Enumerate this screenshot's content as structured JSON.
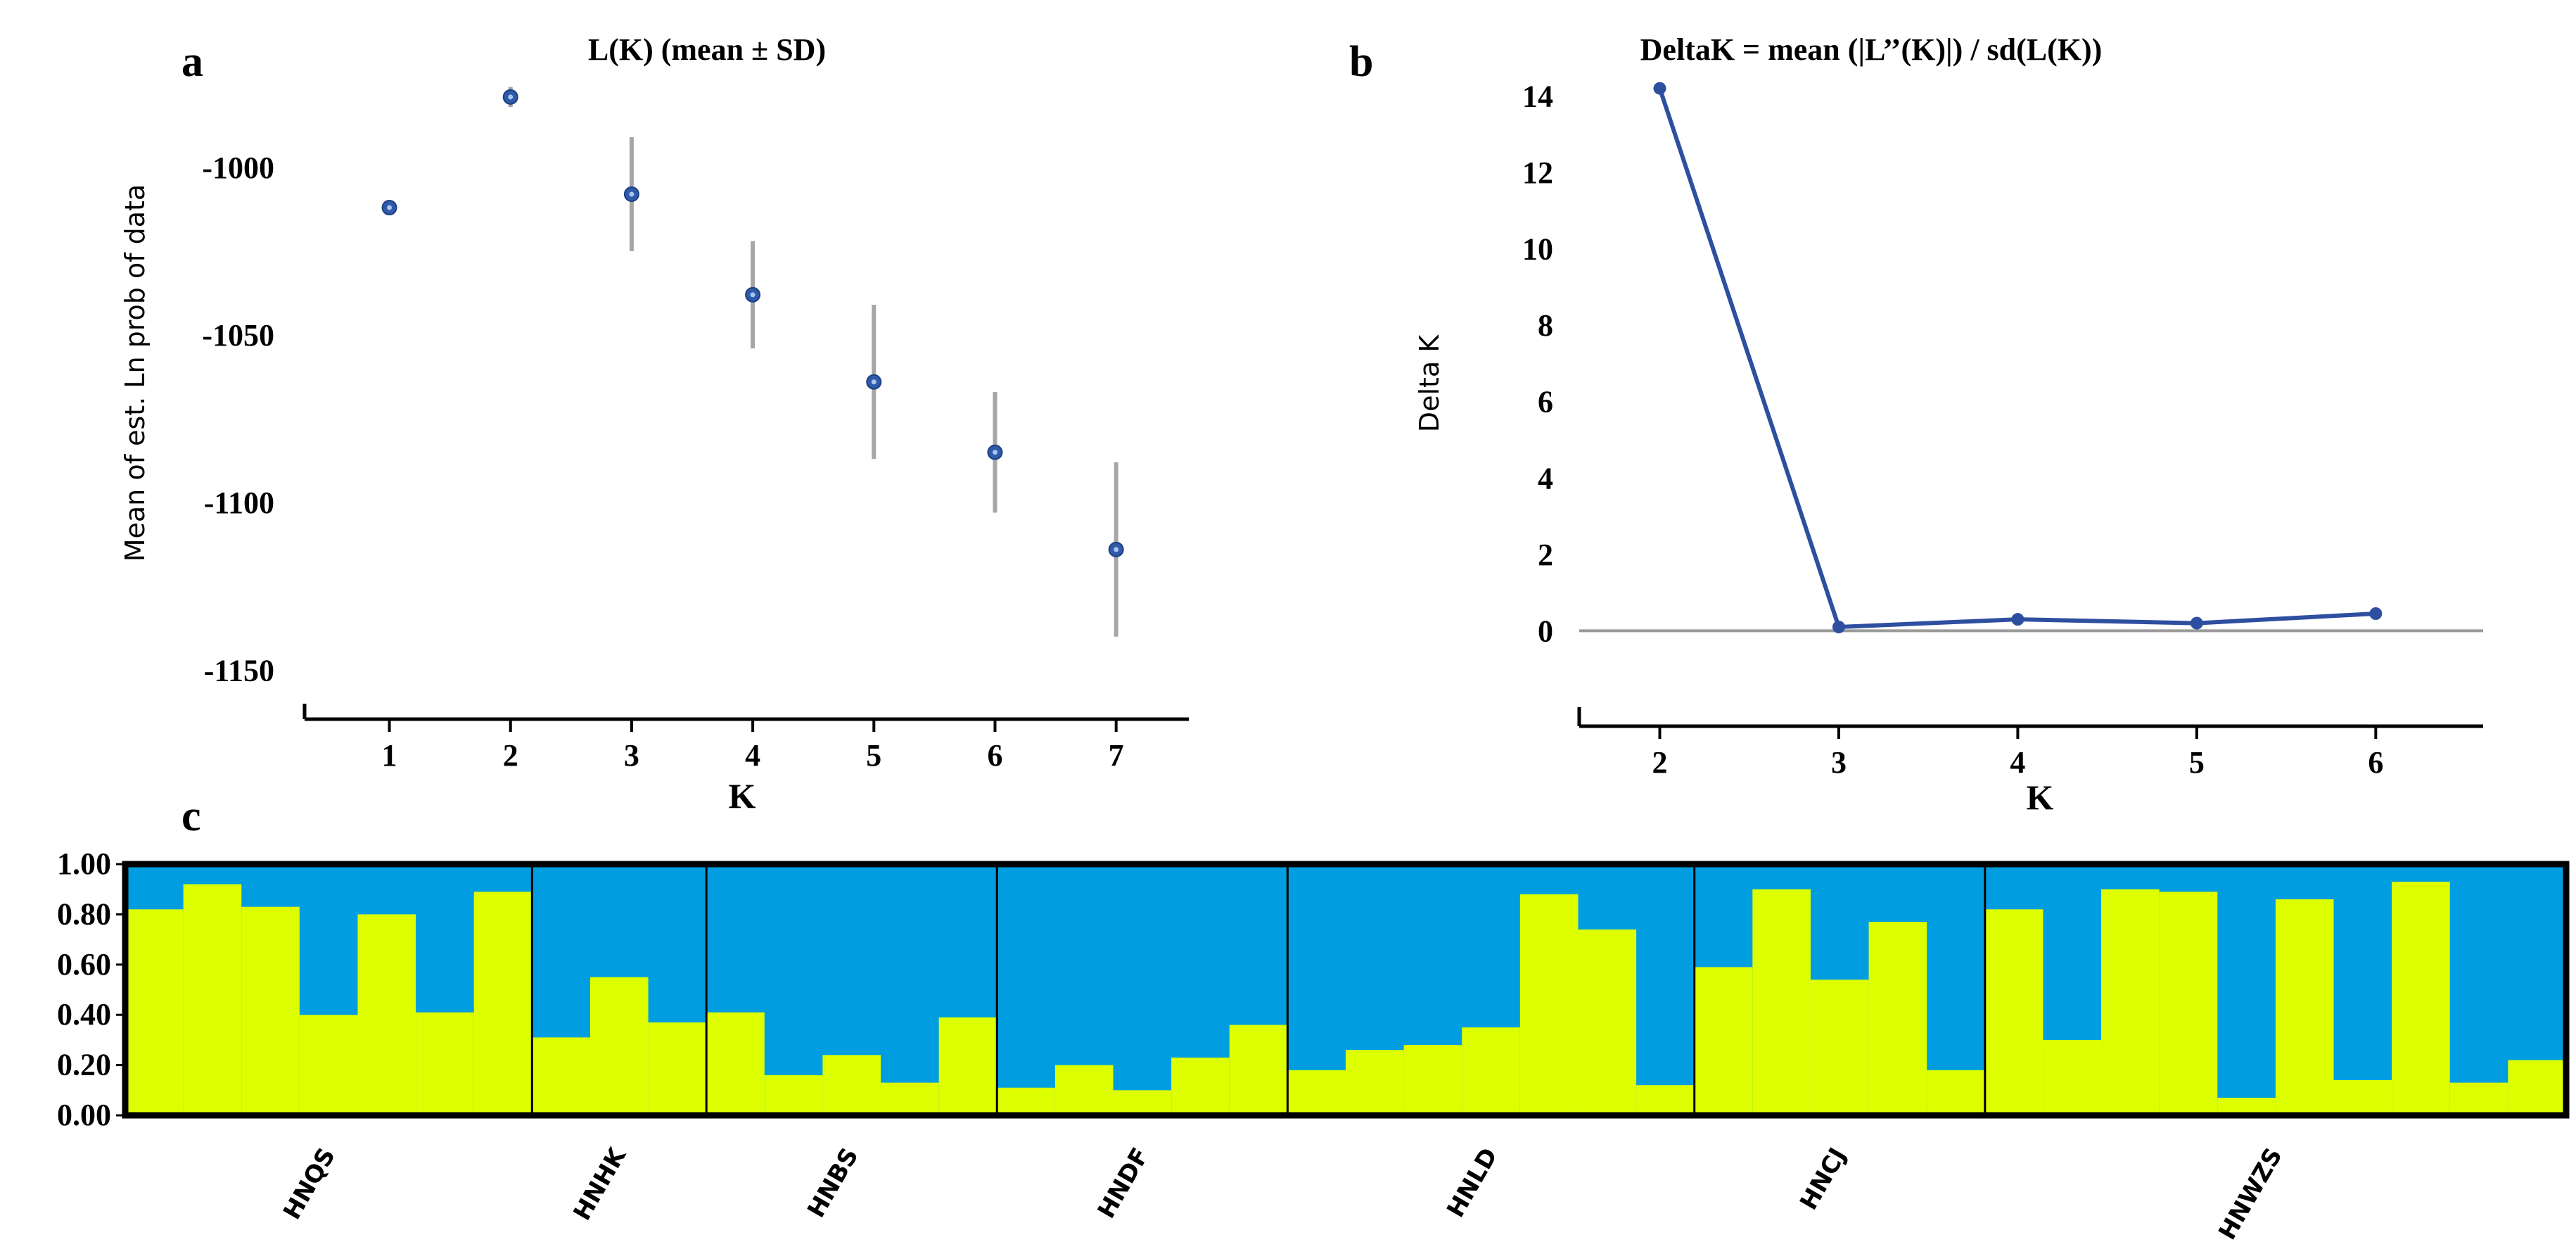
{
  "panels": {
    "a": {
      "letter": "a"
    },
    "b": {
      "letter": "b"
    },
    "c": {
      "letter": "c"
    }
  },
  "chart_data": [
    {
      "type": "scatter",
      "title": "L(K) (mean ± SD)",
      "xlabel": "K",
      "ylabel": "Mean of est. Ln prob of data",
      "x": [
        1,
        2,
        3,
        4,
        5,
        6,
        7
      ],
      "y": [
        -1012,
        -979,
        -1008,
        -1038,
        -1064,
        -1085,
        -1114
      ],
      "sd": [
        0,
        3,
        17,
        16,
        23,
        18,
        26
      ],
      "xlim": [
        0.3,
        7.6
      ],
      "ylim": [
        -1160,
        -970
      ],
      "xticks": [
        1,
        2,
        3,
        4,
        5,
        6,
        7
      ],
      "yticks": [
        -1000,
        -1050,
        -1100,
        -1150
      ],
      "marker_color": "#2e5aa8",
      "errorbar_color": "#a6a6a6",
      "grid": false
    },
    {
      "type": "line",
      "title": "DeltaK = mean (|L’’(K)|) / sd(L(K))",
      "xlabel": "K",
      "ylabel": "Delta K",
      "x": [
        2,
        3,
        4,
        5,
        6
      ],
      "y": [
        14.2,
        0.1,
        0.3,
        0.2,
        0.45
      ],
      "xlim": [
        1.55,
        6.6
      ],
      "ylim": [
        -2,
        15.5
      ],
      "xticks": [
        2,
        3,
        4,
        5,
        6
      ],
      "yticks": [
        0,
        2,
        4,
        6,
        8,
        10,
        12,
        14
      ],
      "line_color": "#2e4fa0",
      "zero_line_color": "#9a9a9a",
      "grid": false
    },
    {
      "type": "bar",
      "stacked": true,
      "yticks": [
        "0.00",
        "0.20",
        "0.40",
        "0.60",
        "0.80",
        "1.00"
      ],
      "ylim": [
        0,
        1
      ],
      "colors": {
        "cluster1": "#ddff00",
        "cluster2": "#009ee0",
        "separator": "#000000"
      },
      "series": [
        {
          "name": "",
          "color": "#ddff00"
        },
        {
          "name": "",
          "color": "#009ee0"
        }
      ],
      "populations": [
        {
          "name": "HNQS",
          "cluster1": [
            0.82,
            0.92,
            0.83,
            0.4,
            0.8,
            0.41,
            0.89
          ]
        },
        {
          "name": "HNHK",
          "cluster1": [
            0.31,
            0.55,
            0.37
          ]
        },
        {
          "name": "HNBS",
          "cluster1": [
            0.41,
            0.16,
            0.24,
            0.13,
            0.39
          ]
        },
        {
          "name": "HNDF",
          "cluster1": [
            0.11,
            0.2,
            0.1,
            0.23,
            0.36
          ]
        },
        {
          "name": "HNLD",
          "cluster1": [
            0.18,
            0.26,
            0.28,
            0.35,
            0.88,
            0.74,
            0.12
          ]
        },
        {
          "name": "HNCJ",
          "cluster1": [
            0.59,
            0.9,
            0.54,
            0.77,
            0.18
          ]
        },
        {
          "name": "HNWZS",
          "cluster1": [
            0.82,
            0.3,
            0.9,
            0.89,
            0.07,
            0.86,
            0.14,
            0.93,
            0.13,
            0.22
          ]
        }
      ]
    }
  ]
}
